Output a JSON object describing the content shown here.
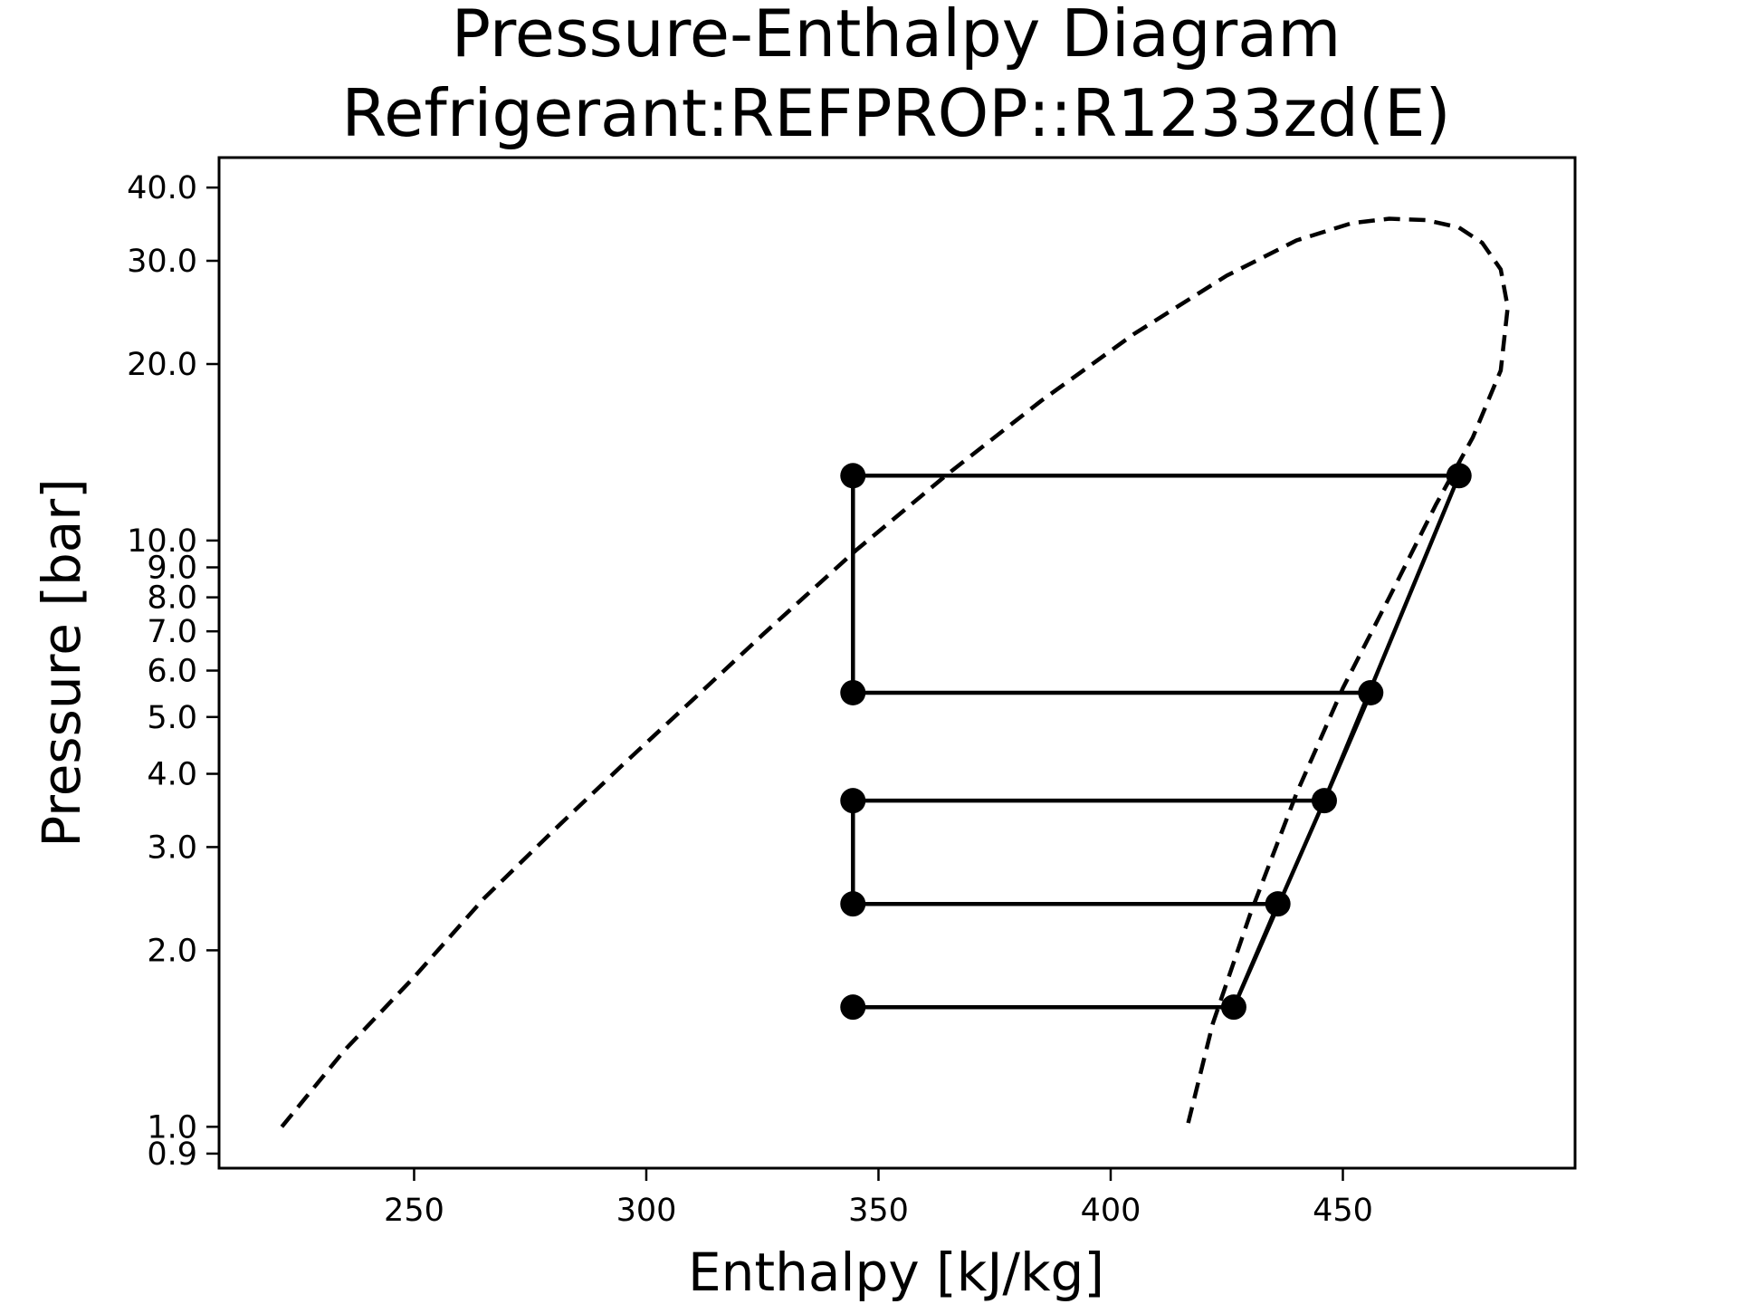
{
  "chart_data": {
    "type": "line",
    "title": "Pressure-Enthalpy Diagram",
    "subtitle": "Refrigerant:REFPROP::R1233zd(E)",
    "xlabel": "Enthalpy [kJ/kg]",
    "ylabel": "Pressure [bar]",
    "xlim": [
      208,
      500
    ],
    "ylim": [
      0.85,
      45
    ],
    "yscale": "log",
    "grid": false,
    "x_ticks": [
      250,
      300,
      350,
      400,
      450
    ],
    "x_tick_labels": [
      "250",
      "300",
      "350",
      "400",
      "450"
    ],
    "y_ticks": [
      0.9,
      1.0,
      2.0,
      3.0,
      4.0,
      5.0,
      6.0,
      7.0,
      8.0,
      9.0,
      10.0,
      20.0,
      30.0,
      40.0
    ],
    "y_tick_labels": [
      "0.9",
      "1.0",
      "2.0",
      "3.0",
      "4.0",
      "5.0",
      "6.0",
      "7.0",
      "8.0",
      "9.0",
      "10.0",
      "20.0",
      "30.0",
      "40.0"
    ],
    "series": [
      {
        "style": "dashed",
        "color": "#000000",
        "points": [
          [
            221.5,
            1.0
          ],
          [
            235,
            1.35
          ],
          [
            250,
            1.8
          ],
          [
            265,
            2.45
          ],
          [
            280,
            3.2
          ],
          [
            295,
            4.15
          ],
          [
            310,
            5.35
          ],
          [
            325,
            6.9
          ],
          [
            345,
            9.6
          ],
          [
            365,
            13.0
          ],
          [
            385,
            17.3
          ],
          [
            405,
            22.5
          ],
          [
            425,
            28.3
          ],
          [
            440,
            32.5
          ],
          [
            452,
            34.8
          ],
          [
            460,
            35.4
          ],
          [
            468,
            35.2
          ],
          [
            475,
            34.2
          ],
          [
            480,
            32.2
          ],
          [
            484,
            29.0
          ],
          [
            485.5,
            25.0
          ],
          [
            484,
            19.5
          ],
          [
            478,
            15.0
          ],
          [
            470,
            11.5
          ],
          [
            460,
            8.0
          ],
          [
            450,
            5.6
          ],
          [
            440,
            3.7
          ],
          [
            430,
            2.3
          ],
          [
            422,
            1.5
          ],
          [
            416.5,
            1.0
          ]
        ]
      },
      {
        "style": "solid",
        "color": "#000000",
        "markers": true,
        "points": [
          [
            344.5,
            1.6
          ],
          [
            426.5,
            1.6
          ],
          [
            436,
            2.4
          ],
          [
            344.5,
            2.4
          ],
          [
            344.5,
            3.6
          ],
          [
            446,
            3.6
          ],
          [
            456,
            5.5
          ],
          [
            344.5,
            5.5
          ],
          [
            344.5,
            12.9
          ],
          [
            475,
            12.9
          ],
          [
            446,
            3.6
          ],
          [
            426.5,
            1.6
          ],
          [
            344.5,
            1.6
          ]
        ]
      }
    ]
  }
}
